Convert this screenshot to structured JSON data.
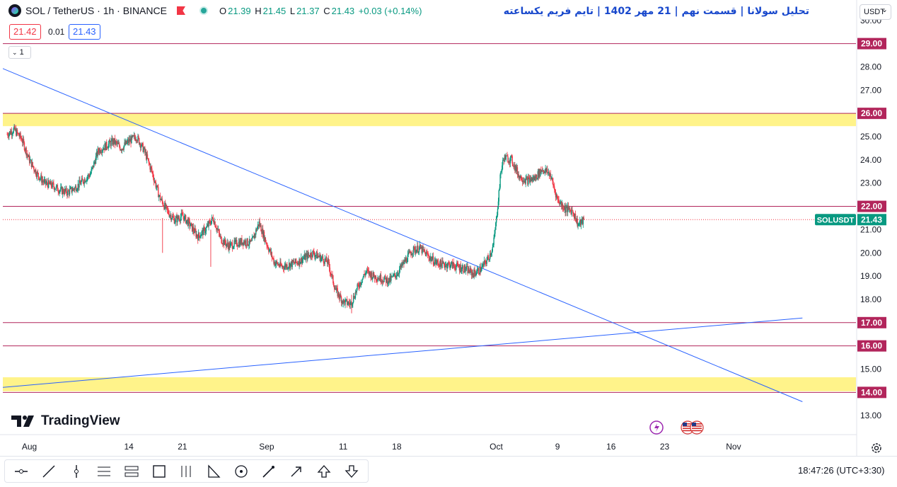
{
  "legend": {
    "symbol": "SOL / TetherUS · 1h · BINANCE",
    "open_label": "O",
    "open": "21.39",
    "high_label": "H",
    "high": "21.45",
    "low_label": "L",
    "low": "21.37",
    "close_label": "C",
    "close": "21.43",
    "change": "+0.03 (+0.14%)"
  },
  "bid_price": "21.42",
  "spread": "0.01",
  "ask_price": "21.43",
  "indicator_toggle": "1",
  "annotation_title": "تحلیل سولانا | قسمت نهم | 21 مهر 1402 | تایم فریم یکساعته",
  "currency": "USDT",
  "brand": "TradingView",
  "clock": "18:47:26 (UTC+3:30)",
  "icons": [
    "sol-icon",
    "flag-icon",
    "dot-icon",
    "settings-icon",
    "lightning-icon",
    "us-flag-icon"
  ],
  "colors": {
    "up": "#089981",
    "down": "#f23645",
    "level_line": "#b2255b",
    "trendline": "#2962ff",
    "zone": "#fff176",
    "tag_bg": "#b2255b",
    "current_tag": "#089981"
  },
  "chart_data": {
    "type": "candlestick",
    "symbol": "SOLUSDT",
    "current_price": "21.43",
    "ylim": [
      12.7,
      30.1
    ],
    "y_ticks": [
      "13.00",
      "14.00",
      "15.00",
      "16.00",
      "17.00",
      "18.00",
      "19.00",
      "20.00",
      "21.00",
      "22.00",
      "23.00",
      "24.00",
      "25.00",
      "26.00",
      "27.00",
      "28.00",
      "29.00",
      "30.00"
    ],
    "x_ticks": [
      {
        "label": "Aug",
        "day": 0
      },
      {
        "label": "14",
        "day": 13
      },
      {
        "label": "21",
        "day": 20
      },
      {
        "label": "Sep",
        "day": 31
      },
      {
        "label": "11",
        "day": 41
      },
      {
        "label": "18",
        "day": 48
      },
      {
        "label": "Oct",
        "day": 61
      },
      {
        "label": "9",
        "day": 69
      },
      {
        "label": "16",
        "day": 76
      },
      {
        "label": "23",
        "day": 83
      },
      {
        "label": "Nov",
        "day": 92
      }
    ],
    "price_path": [
      [
        -2.9,
        25.1
      ],
      [
        -2,
        25.3
      ],
      [
        -1,
        24.9
      ],
      [
        0,
        24.0
      ],
      [
        1,
        23.4
      ],
      [
        2,
        23.0
      ],
      [
        3,
        22.9
      ],
      [
        4,
        22.7
      ],
      [
        5,
        22.6
      ],
      [
        6,
        22.8
      ],
      [
        7,
        23.1
      ],
      [
        8,
        23.4
      ],
      [
        9,
        24.4
      ],
      [
        10,
        24.6
      ],
      [
        11,
        24.8
      ],
      [
        12,
        24.5
      ],
      [
        13,
        24.8
      ],
      [
        14,
        25.0
      ],
      [
        15,
        24.4
      ],
      [
        16,
        23.5
      ],
      [
        17,
        22.4
      ],
      [
        18,
        21.8
      ],
      [
        19,
        21.4
      ],
      [
        20,
        21.6
      ],
      [
        21,
        21.2
      ],
      [
        22,
        20.7
      ],
      [
        23,
        21.0
      ],
      [
        24,
        21.5
      ],
      [
        25,
        20.6
      ],
      [
        26,
        20.3
      ],
      [
        27,
        20.4
      ],
      [
        28,
        20.5
      ],
      [
        29,
        20.4
      ],
      [
        30,
        21.3
      ],
      [
        31,
        20.4
      ],
      [
        32,
        19.6
      ],
      [
        33,
        19.4
      ],
      [
        34,
        19.5
      ],
      [
        35,
        19.6
      ],
      [
        36,
        19.8
      ],
      [
        37,
        20.0
      ],
      [
        38,
        19.8
      ],
      [
        39,
        19.6
      ],
      [
        40,
        18.4
      ],
      [
        41,
        17.9
      ],
      [
        42,
        17.8
      ],
      [
        43,
        18.6
      ],
      [
        44,
        19.2
      ],
      [
        45,
        19.0
      ],
      [
        46,
        18.9
      ],
      [
        47,
        18.8
      ],
      [
        48,
        19.1
      ],
      [
        49,
        19.6
      ],
      [
        50,
        20.1
      ],
      [
        51,
        20.2
      ],
      [
        52,
        19.9
      ],
      [
        53,
        19.6
      ],
      [
        54,
        19.5
      ],
      [
        55,
        19.5
      ],
      [
        56,
        19.4
      ],
      [
        57,
        19.3
      ],
      [
        58,
        19.1
      ],
      [
        59,
        19.3
      ],
      [
        60,
        19.8
      ],
      [
        60.6,
        20.3
      ],
      [
        61,
        21.4
      ],
      [
        61.6,
        23.5
      ],
      [
        62,
        24.1
      ],
      [
        63,
        24.0
      ],
      [
        64,
        23.3
      ],
      [
        65,
        23.1
      ],
      [
        66,
        23.2
      ],
      [
        67,
        23.6
      ],
      [
        68,
        23.4
      ],
      [
        69,
        22.3
      ],
      [
        70,
        21.9
      ],
      [
        71,
        21.8
      ],
      [
        71.7,
        21.2
      ],
      [
        72.5,
        21.42
      ]
    ],
    "levels": [
      "29.00",
      "26.00",
      "22.00",
      "17.00",
      "16.00",
      "14.00"
    ],
    "zones": [
      [
        25.45,
        26.0
      ],
      [
        14.05,
        14.65
      ]
    ],
    "trendlines": [
      {
        "from": [
          -4,
          28.0
        ],
        "to": [
          101,
          13.6
        ]
      },
      {
        "from": [
          -4,
          14.2
        ],
        "to": [
          101,
          17.2
        ]
      }
    ]
  }
}
